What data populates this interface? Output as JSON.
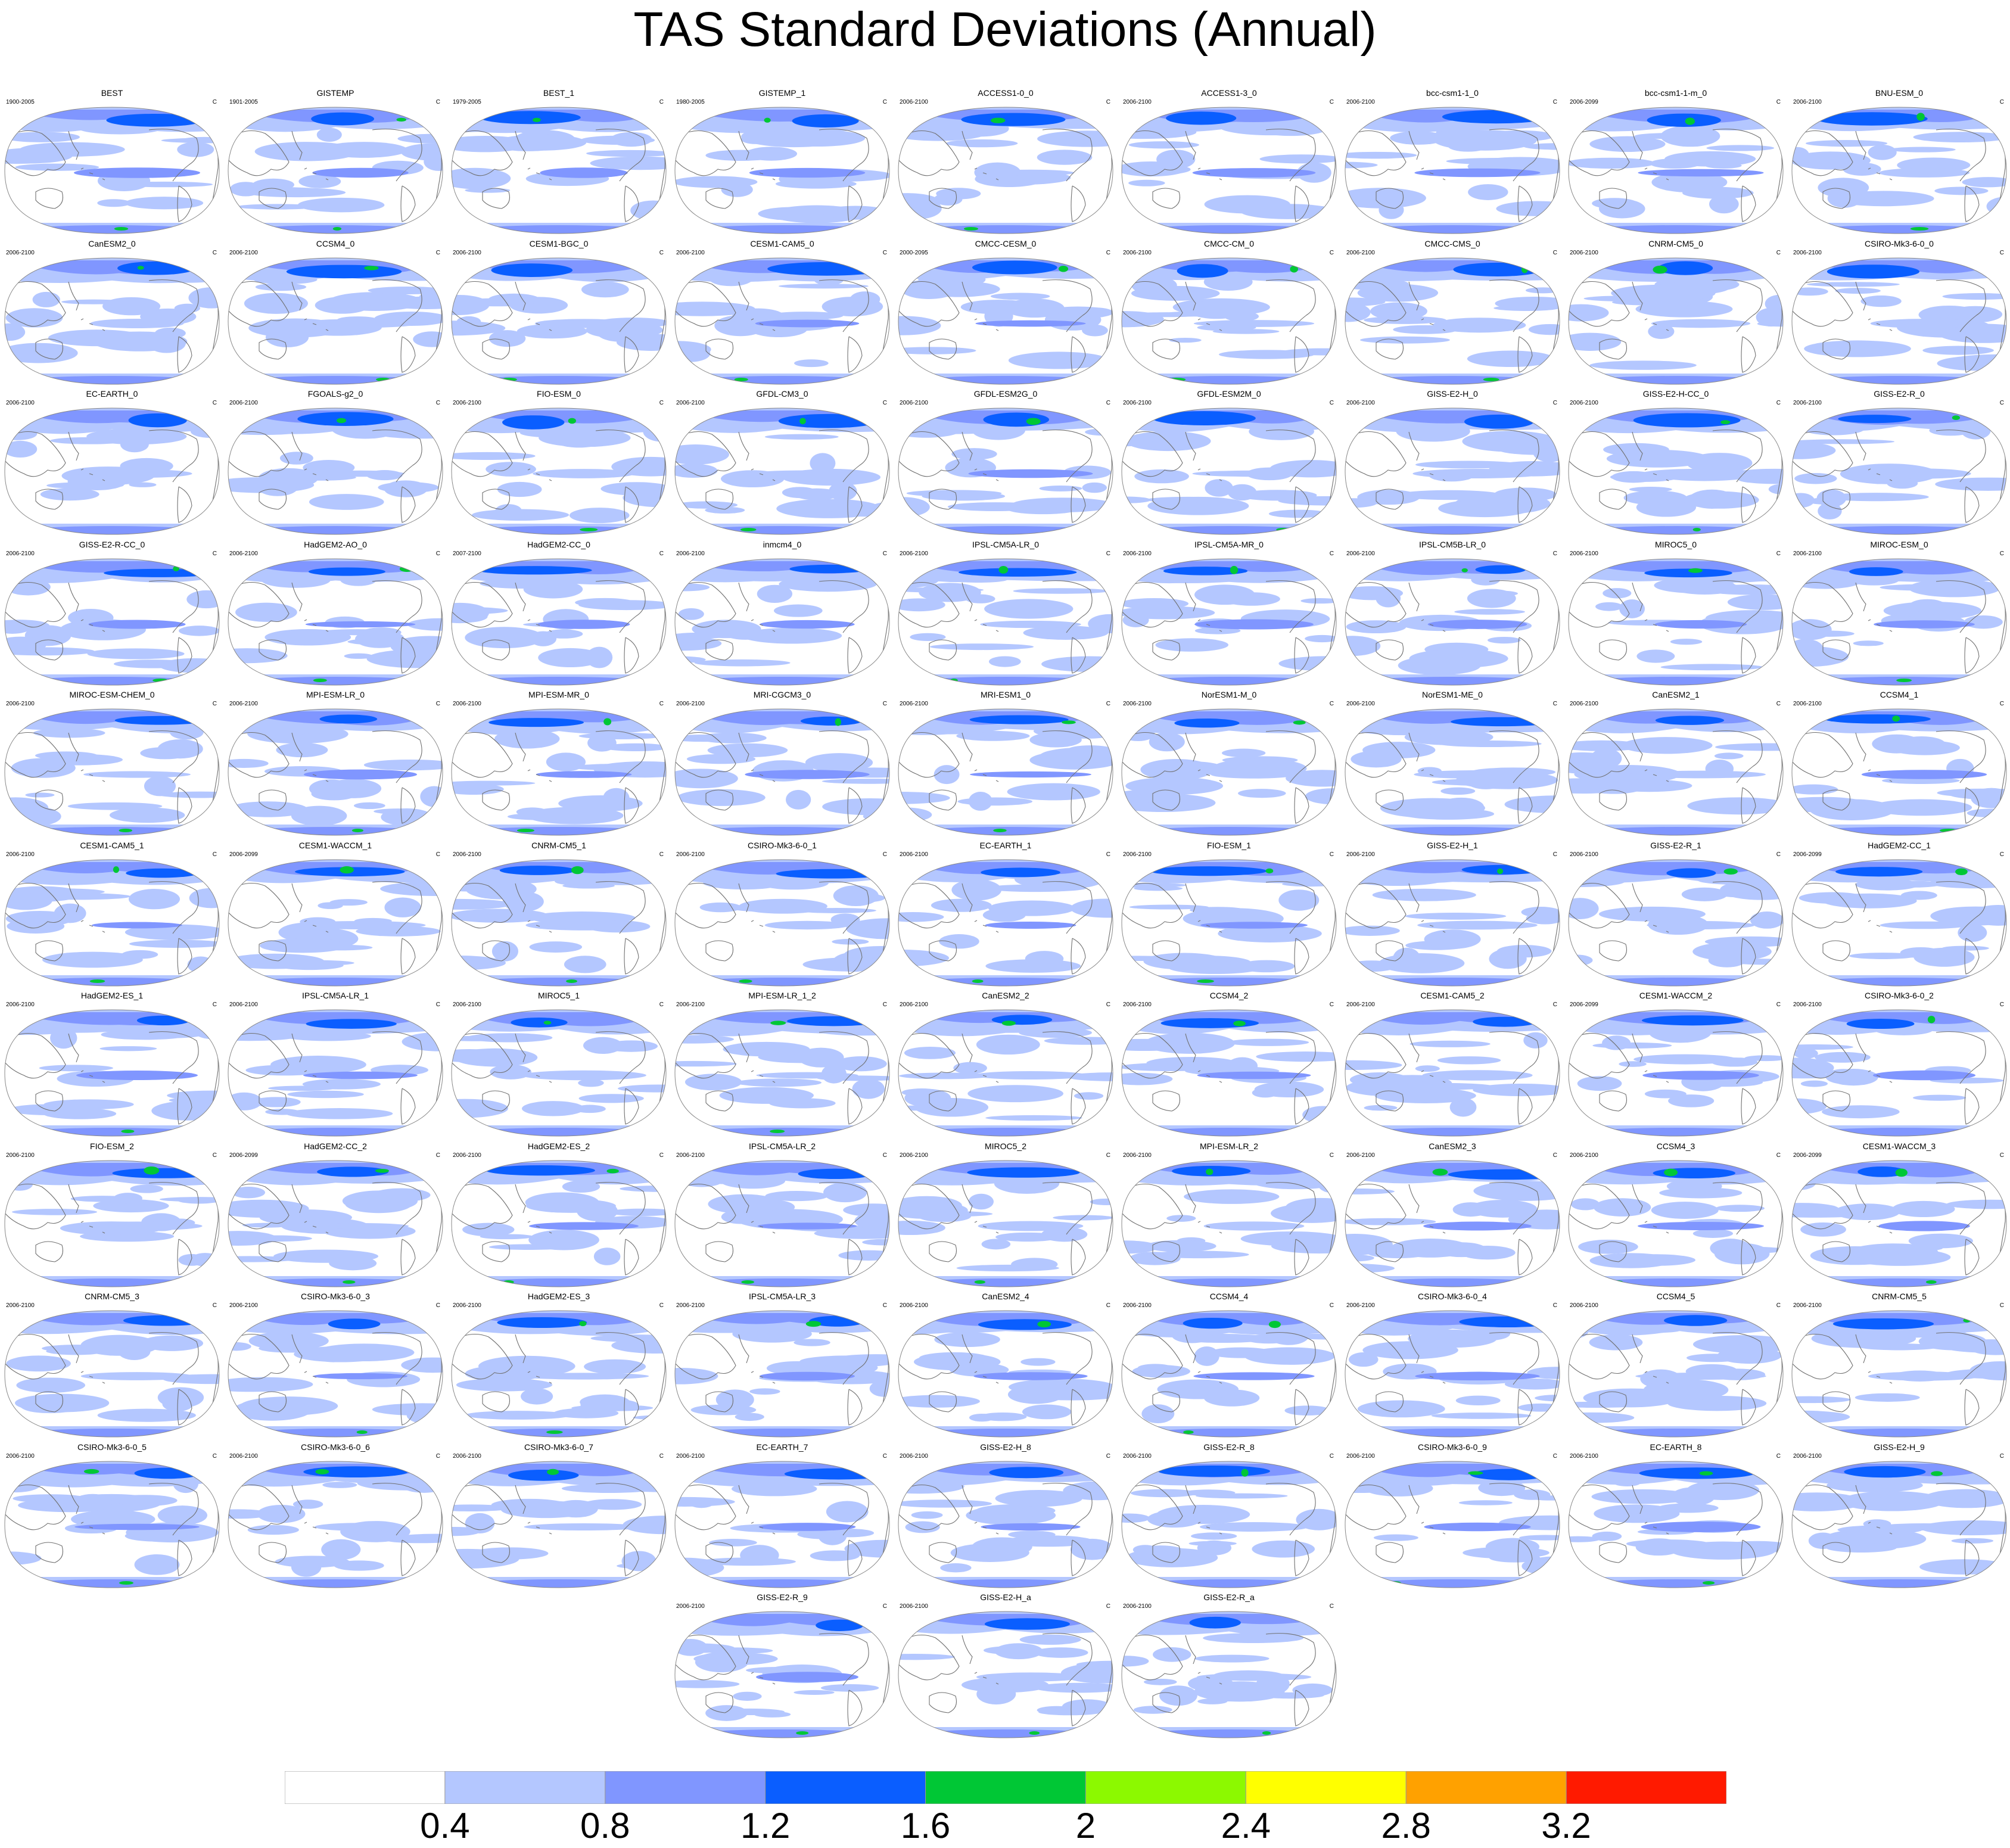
{
  "title": "TAS Standard Deviations (Annual)",
  "unit": "C",
  "colorbar": {
    "colors": [
      "#ffffff",
      "#b4c7ff",
      "#8096ff",
      "#0a5eff",
      "#00c735",
      "#8cf900",
      "#ffff00",
      "#ffa100",
      "#ff1a00"
    ],
    "tick_labels": [
      "0.4",
      "0.8",
      "1.2",
      "1.6",
      "2",
      "2.4",
      "2.8",
      "3.2"
    ]
  },
  "chart_data": {
    "type": "heatmap",
    "title": "TAS Standard Deviations (Annual)",
    "projection": "robinson-global-pacific-centered",
    "color_levels": [
      0.4,
      0.8,
      1.2,
      1.6,
      2.0,
      2.4,
      2.8,
      3.2
    ],
    "unit": "C",
    "panels": [
      {
        "name": "BEST",
        "period": "1900-2005"
      },
      {
        "name": "GISTEMP",
        "period": "1901-2005"
      },
      {
        "name": "BEST_1",
        "period": "1979-2005"
      },
      {
        "name": "GISTEMP_1",
        "period": "1980-2005"
      },
      {
        "name": "ACCESS1-0_0",
        "period": "2006-2100"
      },
      {
        "name": "ACCESS1-3_0",
        "period": "2006-2100"
      },
      {
        "name": "bcc-csm1-1_0",
        "period": "2006-2100"
      },
      {
        "name": "bcc-csm1-1-m_0",
        "period": "2006-2099"
      },
      {
        "name": "BNU-ESM_0",
        "period": "2006-2100"
      },
      {
        "name": "CanESM2_0",
        "period": "2006-2100"
      },
      {
        "name": "CCSM4_0",
        "period": "2006-2100"
      },
      {
        "name": "CESM1-BGC_0",
        "period": "2006-2100"
      },
      {
        "name": "CESM1-CAM5_0",
        "period": "2006-2100"
      },
      {
        "name": "CMCC-CESM_0",
        "period": "2000-2095"
      },
      {
        "name": "CMCC-CM_0",
        "period": "2006-2100"
      },
      {
        "name": "CMCC-CMS_0",
        "period": "2006-2100"
      },
      {
        "name": "CNRM-CM5_0",
        "period": "2006-2100"
      },
      {
        "name": "CSIRO-Mk3-6-0_0",
        "period": "2006-2100"
      },
      {
        "name": "EC-EARTH_0",
        "period": "2006-2100"
      },
      {
        "name": "FGOALS-g2_0",
        "period": "2006-2100"
      },
      {
        "name": "FIO-ESM_0",
        "period": "2006-2100"
      },
      {
        "name": "GFDL-CM3_0",
        "period": "2006-2100"
      },
      {
        "name": "GFDL-ESM2G_0",
        "period": "2006-2100"
      },
      {
        "name": "GFDL-ESM2M_0",
        "period": "2006-2100"
      },
      {
        "name": "GISS-E2-H_0",
        "period": "2006-2100"
      },
      {
        "name": "GISS-E2-H-CC_0",
        "period": "2006-2100"
      },
      {
        "name": "GISS-E2-R_0",
        "period": "2006-2100"
      },
      {
        "name": "GISS-E2-R-CC_0",
        "period": "2006-2100"
      },
      {
        "name": "HadGEM2-AO_0",
        "period": "2006-2100"
      },
      {
        "name": "HadGEM2-CC_0",
        "period": "2007-2100"
      },
      {
        "name": "inmcm4_0",
        "period": "2006-2100"
      },
      {
        "name": "IPSL-CM5A-LR_0",
        "period": "2006-2100"
      },
      {
        "name": "IPSL-CM5A-MR_0",
        "period": "2006-2100"
      },
      {
        "name": "IPSL-CM5B-LR_0",
        "period": "2006-2100"
      },
      {
        "name": "MIROC5_0",
        "period": "2006-2100"
      },
      {
        "name": "MIROC-ESM_0",
        "period": "2006-2100"
      },
      {
        "name": "MIROC-ESM-CHEM_0",
        "period": "2006-2100"
      },
      {
        "name": "MPI-ESM-LR_0",
        "period": "2006-2100"
      },
      {
        "name": "MPI-ESM-MR_0",
        "period": "2006-2100"
      },
      {
        "name": "MRI-CGCM3_0",
        "period": "2006-2100"
      },
      {
        "name": "MRI-ESM1_0",
        "period": "2006-2100"
      },
      {
        "name": "NorESM1-M_0",
        "period": "2006-2100"
      },
      {
        "name": "NorESM1-ME_0",
        "period": "2006-2100"
      },
      {
        "name": "CanESM2_1",
        "period": "2006-2100"
      },
      {
        "name": "CCSM4_1",
        "period": "2006-2100"
      },
      {
        "name": "CESM1-CAM5_1",
        "period": "2006-2100"
      },
      {
        "name": "CESM1-WACCM_1",
        "period": "2006-2099"
      },
      {
        "name": "CNRM-CM5_1",
        "period": "2006-2100"
      },
      {
        "name": "CSIRO-Mk3-6-0_1",
        "period": "2006-2100"
      },
      {
        "name": "EC-EARTH_1",
        "period": "2006-2100"
      },
      {
        "name": "FIO-ESM_1",
        "period": "2006-2100"
      },
      {
        "name": "GISS-E2-H_1",
        "period": "2006-2100"
      },
      {
        "name": "GISS-E2-R_1",
        "period": "2006-2100"
      },
      {
        "name": "HadGEM2-CC_1",
        "period": "2006-2099"
      },
      {
        "name": "HadGEM2-ES_1",
        "period": "2006-2100"
      },
      {
        "name": "IPSL-CM5A-LR_1",
        "period": "2006-2100"
      },
      {
        "name": "MIROC5_1",
        "period": "2006-2100"
      },
      {
        "name": "MPI-ESM-LR_1_2",
        "period": "2006-2100"
      },
      {
        "name": "CanESM2_2",
        "period": "2006-2100"
      },
      {
        "name": "CCSM4_2",
        "period": "2006-2100"
      },
      {
        "name": "CESM1-CAM5_2",
        "period": "2006-2100"
      },
      {
        "name": "CESM1-WACCM_2",
        "period": "2006-2099"
      },
      {
        "name": "CSIRO-Mk3-6-0_2",
        "period": "2006-2100"
      },
      {
        "name": "FIO-ESM_2",
        "period": "2006-2100"
      },
      {
        "name": "HadGEM2-CC_2",
        "period": "2006-2099"
      },
      {
        "name": "HadGEM2-ES_2",
        "period": "2006-2100"
      },
      {
        "name": "IPSL-CM5A-LR_2",
        "period": "2006-2100"
      },
      {
        "name": "MIROC5_2",
        "period": "2006-2100"
      },
      {
        "name": "MPI-ESM-LR_2",
        "period": "2006-2100"
      },
      {
        "name": "CanESM2_3",
        "period": "2006-2100"
      },
      {
        "name": "CCSM4_3",
        "period": "2006-2100"
      },
      {
        "name": "CESM1-WACCM_3",
        "period": "2006-2099"
      },
      {
        "name": "CNRM-CM5_3",
        "period": "2006-2100"
      },
      {
        "name": "CSIRO-Mk3-6-0_3",
        "period": "2006-2100"
      },
      {
        "name": "HadGEM2-ES_3",
        "period": "2006-2100"
      },
      {
        "name": "IPSL-CM5A-LR_3",
        "period": "2006-2100"
      },
      {
        "name": "CanESM2_4",
        "period": "2006-2100"
      },
      {
        "name": "CCSM4_4",
        "period": "2006-2100"
      },
      {
        "name": "CSIRO-Mk3-6-0_4",
        "period": "2006-2100"
      },
      {
        "name": "CCSM4_5",
        "period": "2006-2100"
      },
      {
        "name": "CNRM-CM5_5",
        "period": "2006-2100"
      },
      {
        "name": "CSIRO-Mk3-6-0_5",
        "period": "2006-2100"
      },
      {
        "name": "CSIRO-Mk3-6-0_6",
        "period": "2006-2100"
      },
      {
        "name": "CSIRO-Mk3-6-0_7",
        "period": "2006-2100"
      },
      {
        "name": "EC-EARTH_7",
        "period": "2006-2100"
      },
      {
        "name": "GISS-E2-H_8",
        "period": "2006-2100"
      },
      {
        "name": "GISS-E2-R_8",
        "period": "2006-2100"
      },
      {
        "name": "CSIRO-Mk3-6-0_9",
        "period": "2006-2100"
      },
      {
        "name": "EC-EARTH_8",
        "period": "2006-2100"
      },
      {
        "name": "GISS-E2-H_9",
        "period": "2006-2100"
      },
      {
        "name": "GISS-E2-R_9",
        "period": "2006-2100"
      },
      {
        "name": "GISS-E2-H_a",
        "period": "2006-2100"
      },
      {
        "name": "GISS-E2-R_a",
        "period": "2006-2100"
      }
    ]
  }
}
